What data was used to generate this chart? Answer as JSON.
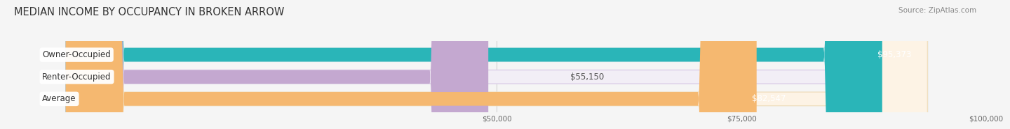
{
  "title": "MEDIAN INCOME BY OCCUPANCY IN BROKEN ARROW",
  "source": "Source: ZipAtlas.com",
  "categories": [
    "Owner-Occupied",
    "Renter-Occupied",
    "Average"
  ],
  "values": [
    95373,
    55150,
    82547
  ],
  "labels": [
    "$95,373",
    "$55,150",
    "$82,547"
  ],
  "bar_colors": [
    "#2ab5b8",
    "#c4a8d0",
    "#f5b870"
  ],
  "bar_bg_colors": [
    "#e4f4f5",
    "#f2eef6",
    "#fdf3e5"
  ],
  "bar_edge_colors": [
    "#c0e0e2",
    "#ddd0e8",
    "#f0dfc0"
  ],
  "xmin": 0,
  "xmax": 100000,
  "xticks": [
    50000,
    75000,
    100000
  ],
  "xtick_labels": [
    "$50,000",
    "$75,000",
    "$100,000"
  ],
  "background_color": "#f5f5f5",
  "title_fontsize": 10.5,
  "source_fontsize": 7.5,
  "label_fontsize": 8.5,
  "bar_label_fontsize": 8.5,
  "label_value_inside_colors": [
    "white",
    "#555555",
    "white"
  ]
}
